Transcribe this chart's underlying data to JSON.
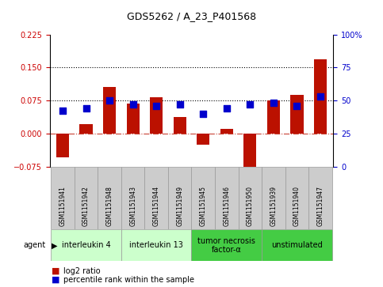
{
  "title": "GDS5262 / A_23_P401568",
  "samples": [
    "GSM1151941",
    "GSM1151942",
    "GSM1151948",
    "GSM1151943",
    "GSM1151944",
    "GSM1151949",
    "GSM1151945",
    "GSM1151946",
    "GSM1151950",
    "GSM1151939",
    "GSM1151940",
    "GSM1151947"
  ],
  "log2_ratio": [
    -0.055,
    0.022,
    0.105,
    0.068,
    0.082,
    0.038,
    -0.025,
    0.01,
    -0.095,
    0.075,
    0.088,
    0.168
  ],
  "percentile": [
    42,
    44,
    50,
    47,
    46,
    47,
    40,
    44,
    47,
    48,
    46,
    53
  ],
  "ylim": [
    -0.075,
    0.225
  ],
  "yticks_left": [
    -0.075,
    0,
    0.075,
    0.15,
    0.225
  ],
  "yticks_right": [
    0,
    25,
    50,
    75,
    100
  ],
  "hlines": [
    0.075,
    0.15
  ],
  "zero_line": 0.0,
  "bar_color": "#bb1100",
  "dot_color": "#0000cc",
  "background_color": "#ffffff",
  "label_bg": "#cccccc",
  "agents": [
    {
      "label": "interleukin 4",
      "indices": [
        0,
        1,
        2
      ],
      "color": "#ccffcc"
    },
    {
      "label": "interleukin 13",
      "indices": [
        3,
        4,
        5
      ],
      "color": "#ccffcc"
    },
    {
      "label": "tumor necrosis\nfactor-α",
      "indices": [
        6,
        7,
        8
      ],
      "color": "#44cc44"
    },
    {
      "label": "unstimulated",
      "indices": [
        9,
        10,
        11
      ],
      "color": "#44cc44"
    }
  ],
  "legend_log2": "log2 ratio",
  "legend_pct": "percentile rank within the sample",
  "agent_label": "agent",
  "bar_width": 0.55,
  "dot_size": 30,
  "ylabel_left_color": "#cc0000",
  "ylabel_right_color": "#0000cc",
  "title_fontsize": 9,
  "tick_fontsize": 7,
  "sample_fontsize": 5.5,
  "agent_fontsize": 7,
  "legend_fontsize": 7
}
